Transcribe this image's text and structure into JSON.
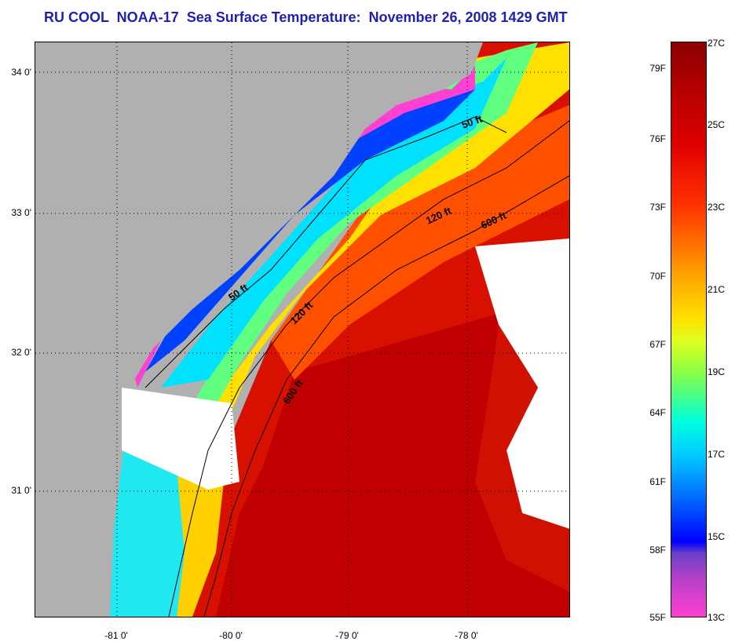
{
  "header": {
    "title": "RU COOL  NOAA-17  Sea Surface Temperature:  November 26, 2008 1429 GMT"
  },
  "map": {
    "lat_labels": [
      "34 0'",
      "33 0'",
      "32 0'",
      "31 0'"
    ],
    "lon_labels": [
      "-81 0'",
      "-80 0'",
      "-79 0'",
      "-78 0'"
    ],
    "contour_labels": {
      "c50_north": "50 ft",
      "c50_south": "50 ft",
      "c120_north": "120 ft",
      "c120_south": "120 ft",
      "c600_north": "600 ft",
      "c600_south": "600 ft"
    },
    "colors": {
      "land": "#b0b0b0",
      "cloud": "#ffffff",
      "warm": "#d40000",
      "cold": "#0000ff"
    }
  },
  "colorbar": {
    "fahrenheit": [
      "79F",
      "76F",
      "73F",
      "70F",
      "67F",
      "64F",
      "61F",
      "58F",
      "55F"
    ],
    "celsius": [
      "27C",
      "25C",
      "23C",
      "21C",
      "19C",
      "17C",
      "15C",
      "13C"
    ]
  }
}
